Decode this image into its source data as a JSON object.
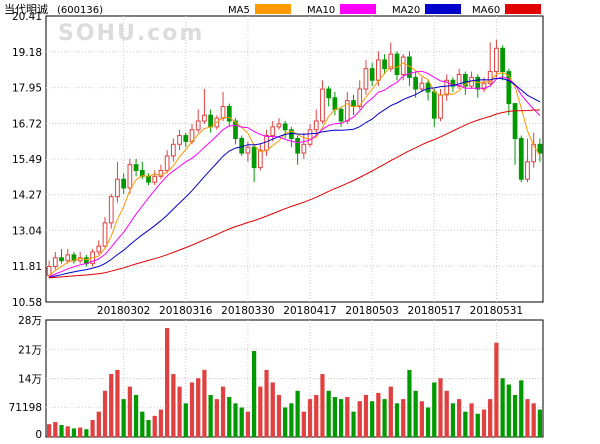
{
  "chart_data": {
    "type": "candlestick",
    "title": "当代明诚",
    "code": "(600136)",
    "watermark": "SOHU.com",
    "legend": [
      {
        "name": "MA5",
        "color": "#ff9900"
      },
      {
        "name": "MA10",
        "color": "#ff00ff"
      },
      {
        "name": "MA20",
        "color": "#0000cc"
      },
      {
        "name": "MA60",
        "color": "#e00000"
      }
    ],
    "colors": {
      "up": "#e04040",
      "down": "#009900",
      "axis": "#000000",
      "grid": "#cccccc"
    },
    "price_axis": {
      "min": 10.58,
      "max": 20.41,
      "ticks": [
        "20.41",
        "19.18",
        "17.95",
        "16.72",
        "15.49",
        "14.27",
        "13.04",
        "11.81",
        "10.58"
      ]
    },
    "volume_axis": {
      "min": 0,
      "max": 280000,
      "tick_labels": [
        "28万",
        "21万",
        "14万",
        "71198",
        "0"
      ],
      "tick_values": [
        280000,
        210000,
        140000,
        71198,
        0
      ]
    },
    "x_labels": [
      {
        "label": "20180302",
        "index": 12
      },
      {
        "label": "20180316",
        "index": 22
      },
      {
        "label": "20180330",
        "index": 32
      },
      {
        "label": "20180417",
        "index": 42
      },
      {
        "label": "20180503",
        "index": 52
      },
      {
        "label": "20180517",
        "index": 62
      },
      {
        "label": "20180531",
        "index": 72
      }
    ],
    "candles": [
      [
        11.5,
        11.8,
        12.0,
        11.4,
        30000
      ],
      [
        11.8,
        12.1,
        12.3,
        11.7,
        35000
      ],
      [
        12.1,
        12.0,
        12.4,
        11.9,
        28000
      ],
      [
        12.0,
        12.2,
        12.4,
        11.9,
        25000
      ],
      [
        12.2,
        12.0,
        12.3,
        11.9,
        20000
      ],
      [
        12.0,
        12.1,
        12.3,
        11.9,
        22000
      ],
      [
        12.1,
        11.9,
        12.2,
        11.8,
        18000
      ],
      [
        11.9,
        12.3,
        12.4,
        11.8,
        40000
      ],
      [
        12.3,
        12.5,
        12.7,
        12.2,
        60000
      ],
      [
        12.5,
        13.3,
        13.5,
        12.4,
        110000
      ],
      [
        13.3,
        14.2,
        14.3,
        13.1,
        150000
      ],
      [
        14.2,
        14.8,
        15.4,
        14.0,
        160000
      ],
      [
        14.8,
        14.5,
        15.0,
        14.3,
        90000
      ],
      [
        14.5,
        15.3,
        15.5,
        14.3,
        120000
      ],
      [
        15.3,
        15.1,
        15.5,
        14.9,
        100000
      ],
      [
        15.1,
        14.9,
        15.4,
        14.8,
        60000
      ],
      [
        14.9,
        14.7,
        15.0,
        14.6,
        40000
      ],
      [
        14.7,
        14.9,
        15.1,
        14.6,
        50000
      ],
      [
        14.9,
        15.1,
        15.3,
        14.8,
        65000
      ],
      [
        15.1,
        15.6,
        15.8,
        15.0,
        260000
      ],
      [
        15.6,
        16.0,
        16.2,
        15.4,
        150000
      ],
      [
        16.0,
        16.3,
        16.5,
        15.8,
        120000
      ],
      [
        16.3,
        16.1,
        16.4,
        15.9,
        80000
      ],
      [
        16.1,
        16.5,
        16.7,
        16.0,
        130000
      ],
      [
        16.5,
        16.8,
        17.2,
        16.4,
        140000
      ],
      [
        16.8,
        17.0,
        17.9,
        16.7,
        160000
      ],
      [
        17.0,
        16.6,
        17.2,
        16.4,
        100000
      ],
      [
        16.6,
        16.9,
        17.0,
        16.5,
        90000
      ],
      [
        16.9,
        17.3,
        17.8,
        16.8,
        120000
      ],
      [
        17.3,
        16.8,
        17.4,
        16.6,
        95000
      ],
      [
        16.8,
        16.2,
        16.9,
        16.0,
        80000
      ],
      [
        16.2,
        15.7,
        16.3,
        15.6,
        70000
      ],
      [
        15.7,
        15.9,
        16.1,
        15.4,
        60000
      ],
      [
        15.9,
        15.2,
        16.0,
        14.7,
        205000
      ],
      [
        15.2,
        15.8,
        16.0,
        15.1,
        120000
      ],
      [
        15.8,
        16.3,
        16.5,
        15.6,
        160000
      ],
      [
        16.3,
        16.6,
        16.8,
        16.1,
        130000
      ],
      [
        16.6,
        16.7,
        16.9,
        16.5,
        100000
      ],
      [
        16.7,
        16.5,
        16.8,
        16.2,
        70000
      ],
      [
        16.5,
        16.2,
        16.6,
        15.9,
        80000
      ],
      [
        16.2,
        15.7,
        16.3,
        15.3,
        110000
      ],
      [
        15.7,
        16.0,
        16.4,
        15.5,
        60000
      ],
      [
        16.0,
        16.5,
        16.7,
        15.9,
        90000
      ],
      [
        16.5,
        16.8,
        17.2,
        16.3,
        100000
      ],
      [
        16.8,
        17.9,
        18.2,
        16.7,
        150000
      ],
      [
        17.9,
        17.6,
        18.0,
        17.3,
        110000
      ],
      [
        17.6,
        17.2,
        17.8,
        17.0,
        95000
      ],
      [
        17.2,
        16.8,
        17.3,
        16.6,
        90000
      ],
      [
        16.8,
        17.5,
        17.8,
        16.7,
        95000
      ],
      [
        17.5,
        17.3,
        17.7,
        17.0,
        60000
      ],
      [
        17.3,
        17.9,
        18.2,
        17.2,
        85000
      ],
      [
        17.9,
        18.6,
        18.9,
        17.7,
        100000
      ],
      [
        18.6,
        18.2,
        18.8,
        18.0,
        85000
      ],
      [
        18.2,
        18.9,
        19.2,
        18.0,
        105000
      ],
      [
        18.9,
        18.6,
        19.1,
        18.4,
        90000
      ],
      [
        18.6,
        19.1,
        19.5,
        18.5,
        120000
      ],
      [
        19.1,
        18.4,
        19.2,
        18.2,
        80000
      ],
      [
        18.4,
        19.0,
        19.1,
        18.2,
        90000
      ],
      [
        19.0,
        18.3,
        19.2,
        18.0,
        160000
      ],
      [
        18.3,
        17.9,
        18.5,
        17.6,
        110000
      ],
      [
        17.9,
        18.1,
        18.3,
        17.8,
        85000
      ],
      [
        18.1,
        17.8,
        18.2,
        17.5,
        70000
      ],
      [
        17.8,
        16.9,
        17.9,
        16.6,
        130000
      ],
      [
        16.9,
        17.7,
        17.9,
        16.8,
        140000
      ],
      [
        17.7,
        18.2,
        18.4,
        17.5,
        110000
      ],
      [
        18.2,
        18.0,
        18.3,
        17.8,
        80000
      ],
      [
        18.0,
        18.4,
        18.6,
        17.9,
        90000
      ],
      [
        18.4,
        18.0,
        18.5,
        17.7,
        60000
      ],
      [
        18.0,
        18.3,
        18.5,
        17.9,
        80000
      ],
      [
        18.3,
        17.9,
        18.4,
        17.6,
        55000
      ],
      [
        17.9,
        18.1,
        18.3,
        17.8,
        65000
      ],
      [
        18.1,
        18.5,
        19.5,
        18.0,
        90000
      ],
      [
        18.5,
        19.3,
        19.6,
        18.3,
        225000
      ],
      [
        19.3,
        18.5,
        19.4,
        18.2,
        140000
      ],
      [
        18.5,
        17.4,
        18.6,
        17.0,
        125000
      ],
      [
        17.4,
        16.2,
        17.4,
        15.3,
        100000
      ],
      [
        16.2,
        14.8,
        16.3,
        14.7,
        135000
      ],
      [
        14.8,
        15.4,
        16.2,
        14.7,
        90000
      ],
      [
        15.4,
        16.0,
        16.4,
        15.2,
        80000
      ],
      [
        16.0,
        15.7,
        16.2,
        15.4,
        65000
      ]
    ]
  }
}
